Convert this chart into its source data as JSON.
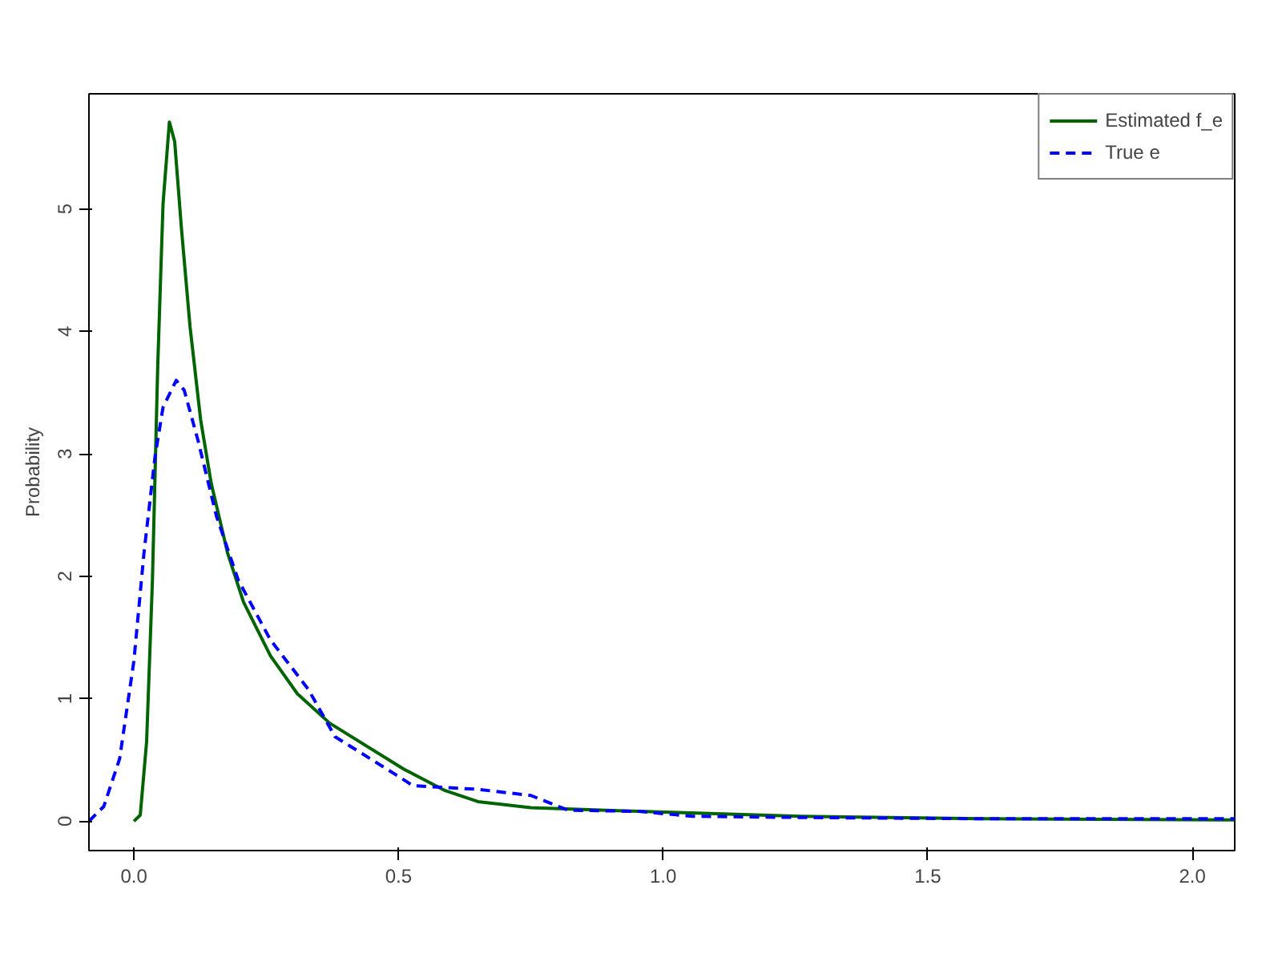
{
  "chart_data": {
    "type": "line",
    "ylabel": "Probability",
    "xlim": [
      -0.085,
      2.08
    ],
    "ylim": [
      -0.24,
      5.94
    ],
    "xticks": [
      {
        "value": 0,
        "label": "0.0"
      },
      {
        "value": 0.5,
        "label": "0.5"
      },
      {
        "value": 1,
        "label": "1.0"
      },
      {
        "value": 1.5,
        "label": "1.5"
      },
      {
        "value": 2,
        "label": "2.0"
      }
    ],
    "yticks": [
      0,
      1,
      2,
      3,
      4,
      5
    ],
    "grid": false,
    "legend": "top right",
    "series": [
      {
        "name": "Estimated f_e",
        "color": "#006400",
        "line_style": "solid",
        "x": [
          0.0,
          0.012,
          0.024,
          0.035,
          0.045,
          0.055,
          0.067,
          0.077,
          0.09,
          0.106,
          0.126,
          0.146,
          0.177,
          0.207,
          0.258,
          0.309,
          0.37,
          0.512,
          0.588,
          0.65,
          0.75,
          0.954,
          1.26,
          1.6,
          2.08
        ],
        "values": [
          0,
          0.05,
          0.65,
          1.97,
          3.72,
          5.04,
          5.71,
          5.55,
          4.83,
          4.04,
          3.28,
          2.76,
          2.19,
          1.79,
          1.35,
          1.04,
          0.8,
          0.42,
          0.25,
          0.16,
          0.11,
          0.08,
          0.04,
          0.02,
          0.01
        ]
      },
      {
        "name": "True e",
        "color": "#0000ff",
        "line_style": "dashed",
        "x": [
          -0.085,
          -0.057,
          -0.027,
          0.0,
          0.019,
          0.04,
          0.055,
          0.08,
          0.095,
          0.121,
          0.156,
          0.197,
          0.258,
          0.329,
          0.38,
          0.502,
          0.527,
          0.65,
          0.75,
          0.82,
          0.954,
          1.055,
          1.26,
          1.6,
          2.08
        ],
        "values": [
          0,
          0.12,
          0.51,
          1.31,
          2.19,
          2.98,
          3.38,
          3.6,
          3.52,
          3.11,
          2.49,
          1.97,
          1.48,
          1.08,
          0.69,
          0.36,
          0.29,
          0.26,
          0.21,
          0.09,
          0.08,
          0.04,
          0.03,
          0.02,
          0.02
        ]
      }
    ]
  }
}
